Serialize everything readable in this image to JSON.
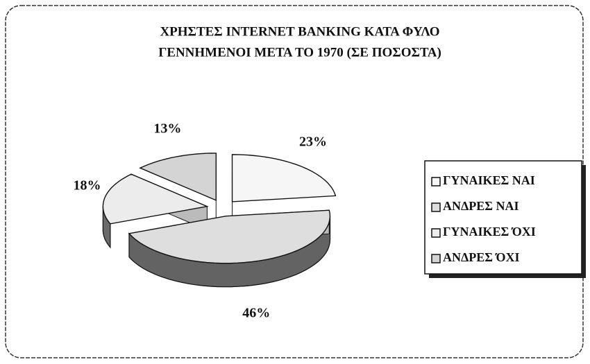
{
  "chart_data": {
    "type": "pie",
    "title": "ΧΡΗΣΤΕΣ INTERNET BANKING ΚΑΤΑ ΦΥΛΟ",
    "subtitle": "ΓΕΝΝΗΜΕΝΟΙ ΜΕΤΑ ΤΟ 1970 (ΣΕ ΠΟΣΟΣΤΑ)",
    "categories": [
      "ΓΥΝΑΙΚΕΣ ΝΑΙ",
      "ΑΝΔΡΕΣ ΝΑΙ",
      "ΓΥΝΑΙΚΕΣ ΌΧΙ",
      "ΑΝΔΡΕΣ ΌΧΙ"
    ],
    "values": [
      23,
      46,
      18,
      13
    ],
    "value_labels": [
      "23%",
      "46%",
      "18%",
      "13%"
    ],
    "colors": [
      "#f6f6f6",
      "#dedede",
      "#ececec",
      "#d4d4d4"
    ],
    "legend": "right"
  }
}
